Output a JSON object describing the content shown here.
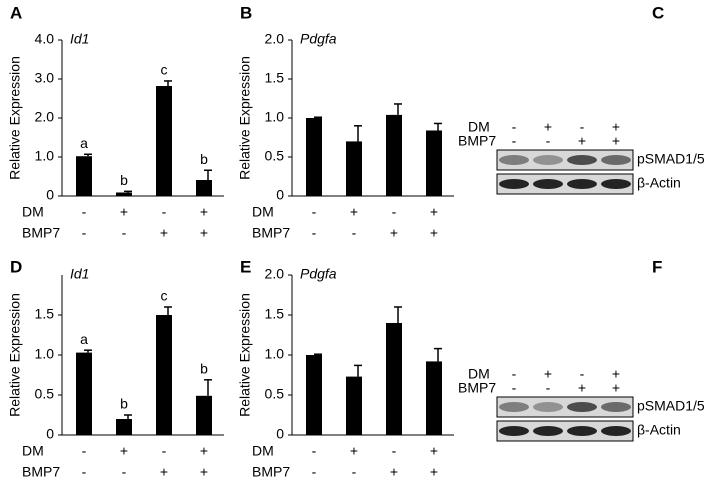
{
  "chart_data": [
    {
      "type": "bar",
      "panel": "A",
      "title": "Id1",
      "ylabel": "Relative Expression",
      "values": [
        1.02,
        0.09,
        2.82,
        0.41
      ],
      "errors": [
        0.05,
        0.03,
        0.13,
        0.25
      ],
      "annotations": [
        "a",
        "b",
        "c",
        "b"
      ],
      "color": "#000000",
      "ylim": [
        0,
        4
      ],
      "yticks": [
        0,
        {
          "value": 1,
          "label": "1.0"
        },
        {
          "value": 2,
          "label": "2.0"
        },
        {
          "value": 3,
          "label": "3.0"
        },
        {
          "value": 4,
          "label": "4.0"
        }
      ],
      "conditions": [
        {
          "label": "DM",
          "signs": [
            "-",
            "+",
            "-",
            "+"
          ]
        },
        {
          "label": "BMP7",
          "signs": [
            "-",
            "-",
            "+",
            "+"
          ]
        }
      ]
    },
    {
      "type": "bar",
      "panel": "B",
      "title": "Pdgfa",
      "ylabel": "Relative Expression",
      "values": [
        1.0,
        0.7,
        1.04,
        0.84
      ],
      "errors": [
        0.01,
        0.2,
        0.14,
        0.09
      ],
      "color": "#000000",
      "ylim": [
        0,
        2
      ],
      "yticks": [
        0,
        0.5,
        {
          "value": 1,
          "label": "1.0"
        },
        1.5,
        {
          "value": 2,
          "label": "2.0"
        }
      ],
      "conditions": [
        {
          "label": "DM",
          "signs": [
            "-",
            "+",
            "-",
            "+"
          ]
        },
        {
          "label": "BMP7",
          "signs": [
            "-",
            "-",
            "+",
            "+"
          ]
        }
      ]
    },
    {
      "type": "bar",
      "panel": "D",
      "title": "Id1",
      "ylabel": "Relative Expression",
      "values": [
        1.03,
        0.2,
        1.5,
        0.49
      ],
      "errors": [
        0.03,
        0.05,
        0.1,
        0.2
      ],
      "annotations": [
        "a",
        "b",
        "c",
        "b"
      ],
      "color": "#000000",
      "ylim": [
        0,
        2
      ],
      "yticks": [
        0,
        0.5,
        {
          "value": 1,
          "label": "1.0"
        },
        1.5
      ],
      "conditions": [
        {
          "label": "DM",
          "signs": [
            "-",
            "+",
            "-",
            "+"
          ]
        },
        {
          "label": "BMP7",
          "signs": [
            "-",
            "-",
            "+",
            "+"
          ]
        }
      ]
    },
    {
      "type": "bar",
      "panel": "E",
      "title": "Pdgfa",
      "ylabel": "Relative Expression",
      "values": [
        1.0,
        0.73,
        1.4,
        0.92
      ],
      "errors": [
        0.01,
        0.14,
        0.2,
        0.16
      ],
      "color": "#000000",
      "ylim": [
        0,
        2
      ],
      "yticks": [
        0,
        0.5,
        {
          "value": 1,
          "label": "1.0"
        },
        1.5,
        {
          "value": 2,
          "label": "2.0"
        }
      ],
      "conditions": [
        {
          "label": "DM",
          "signs": [
            "-",
            "+",
            "-",
            "+"
          ]
        },
        {
          "label": "BMP7",
          "signs": [
            "-",
            "-",
            "+",
            "+"
          ]
        }
      ]
    }
  ],
  "blots": [
    {
      "panel": "C",
      "conditions": [
        {
          "label": "DM",
          "signs": [
            "-",
            "+",
            "-",
            "+"
          ]
        },
        {
          "label": "BMP7",
          "signs": [
            "-",
            "-",
            "+",
            "+"
          ]
        }
      ],
      "bands": [
        "pSMAD1/5",
        "β-Actin"
      ]
    },
    {
      "panel": "F",
      "conditions": [
        {
          "label": "DM",
          "signs": [
            "-",
            "+",
            "-",
            "+"
          ]
        },
        {
          "label": "BMP7",
          "signs": [
            "-",
            "-",
            "+",
            "+"
          ]
        }
      ],
      "bands": [
        "pSMAD1/5",
        "β-Actin"
      ]
    }
  ]
}
